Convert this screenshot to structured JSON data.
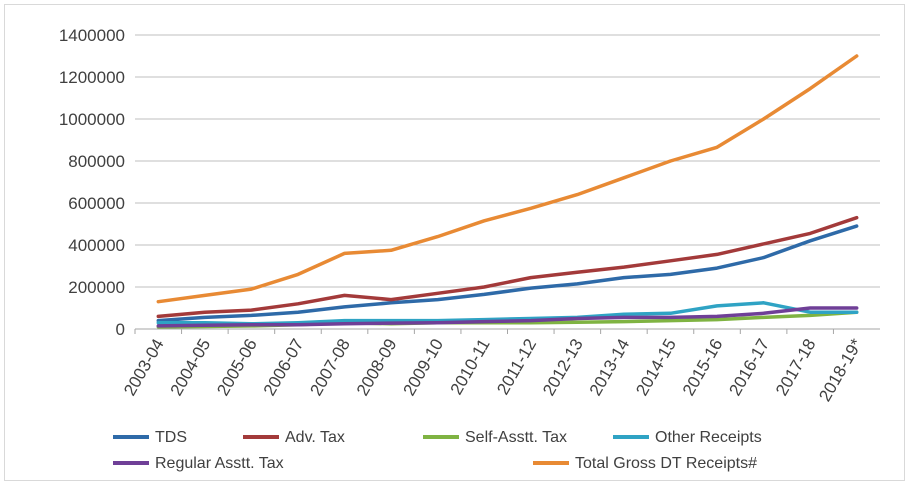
{
  "chart_data": {
    "type": "line",
    "title": "",
    "xlabel": "",
    "ylabel": "",
    "categories": [
      "2003-04",
      "2004-05",
      "2005-06",
      "2006-07",
      "2007-08",
      "2008-09",
      "2009-10",
      "2010-11",
      "2011-12",
      "2012-13",
      "2013-14",
      "2014-15",
      "2015-16",
      "2016-17",
      "2017-18",
      "2018-19*"
    ],
    "ylim": [
      0,
      1400000
    ],
    "yticks": [
      "0",
      "200000",
      "400000",
      "600000",
      "800000",
      "1000000",
      "1200000",
      "1400000"
    ],
    "grid": true,
    "legend_position": "bottom",
    "series": [
      {
        "name": "TDS",
        "color": "#2e6aa8",
        "values": [
          40000,
          55000,
          65000,
          80000,
          105000,
          125000,
          140000,
          165000,
          195000,
          215000,
          245000,
          260000,
          290000,
          340000,
          420000,
          490000
        ]
      },
      {
        "name": "Adv. Tax",
        "color": "#a33a3a",
        "values": [
          60000,
          80000,
          90000,
          120000,
          160000,
          140000,
          170000,
          200000,
          245000,
          270000,
          295000,
          325000,
          355000,
          405000,
          455000,
          530000
        ]
      },
      {
        "name": "Self-Asstt. Tax",
        "color": "#7fb342",
        "values": [
          10000,
          12000,
          15000,
          20000,
          30000,
          25000,
          30000,
          30000,
          30000,
          32000,
          35000,
          40000,
          45000,
          55000,
          65000,
          80000
        ]
      },
      {
        "name": "Other Receipts",
        "color": "#2fa3c4",
        "values": [
          30000,
          30000,
          25000,
          30000,
          40000,
          40000,
          40000,
          45000,
          50000,
          55000,
          70000,
          75000,
          110000,
          125000,
          80000,
          80000
        ]
      },
      {
        "name": "Regular Asstt. Tax",
        "color": "#6f3f97",
        "values": [
          15000,
          18000,
          20000,
          20000,
          25000,
          28000,
          30000,
          35000,
          40000,
          50000,
          55000,
          55000,
          60000,
          75000,
          100000,
          100000
        ]
      },
      {
        "name": "Total Gross DT Receipts#",
        "color": "#e88a34",
        "values": [
          130000,
          160000,
          190000,
          260000,
          360000,
          375000,
          440000,
          515000,
          575000,
          640000,
          720000,
          800000,
          865000,
          1000000,
          1145000,
          1300000
        ]
      }
    ]
  }
}
